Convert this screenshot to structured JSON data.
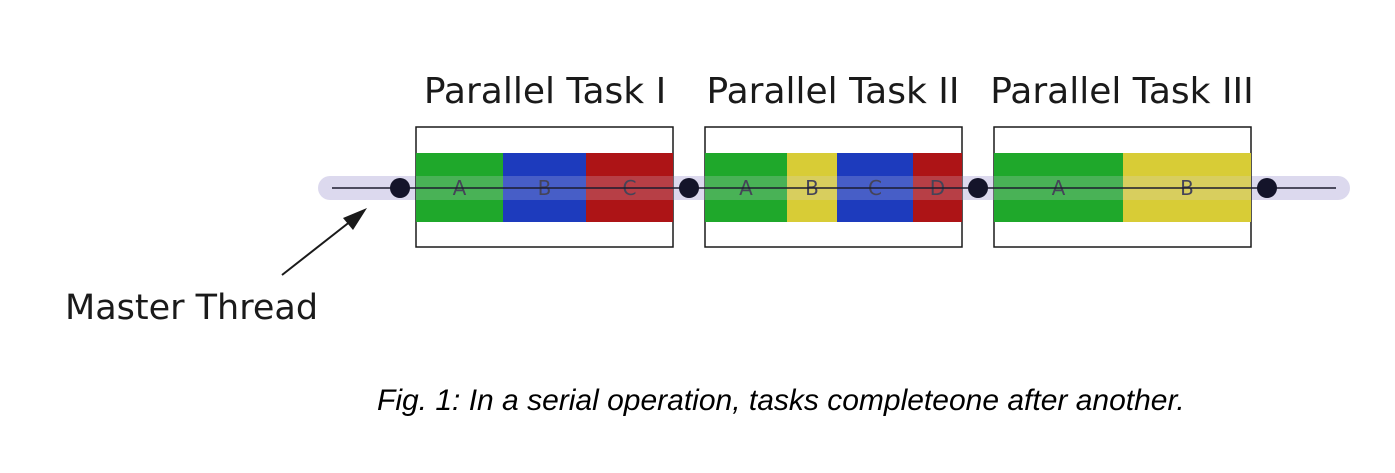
{
  "tasks": [
    {
      "title": "Parallel Task I",
      "segments": [
        {
          "label": "A",
          "color": "#1fa82b"
        },
        {
          "label": "B",
          "color": "#1d3bbd"
        },
        {
          "label": "C",
          "color": "#ad1416"
        }
      ]
    },
    {
      "title": "Parallel Task II",
      "segments": [
        {
          "label": "A",
          "color": "#1fa82b"
        },
        {
          "label": "B",
          "color": "#d8cc36"
        },
        {
          "label": "C",
          "color": "#1d3bbd"
        },
        {
          "label": "D",
          "color": "#ad1416"
        }
      ]
    },
    {
      "title": "Parallel Task III",
      "segments": [
        {
          "label": "A",
          "color": "#1fa82b"
        },
        {
          "label": "B",
          "color": "#d8cc36"
        }
      ]
    }
  ],
  "master_thread": {
    "label": "Master Thread",
    "line_color": "#1c1c2e",
    "band_color": "#dcd9ee",
    "node_color": "#14142a"
  },
  "caption": "Fig. 1: In a serial operation, tasks completeone after another."
}
